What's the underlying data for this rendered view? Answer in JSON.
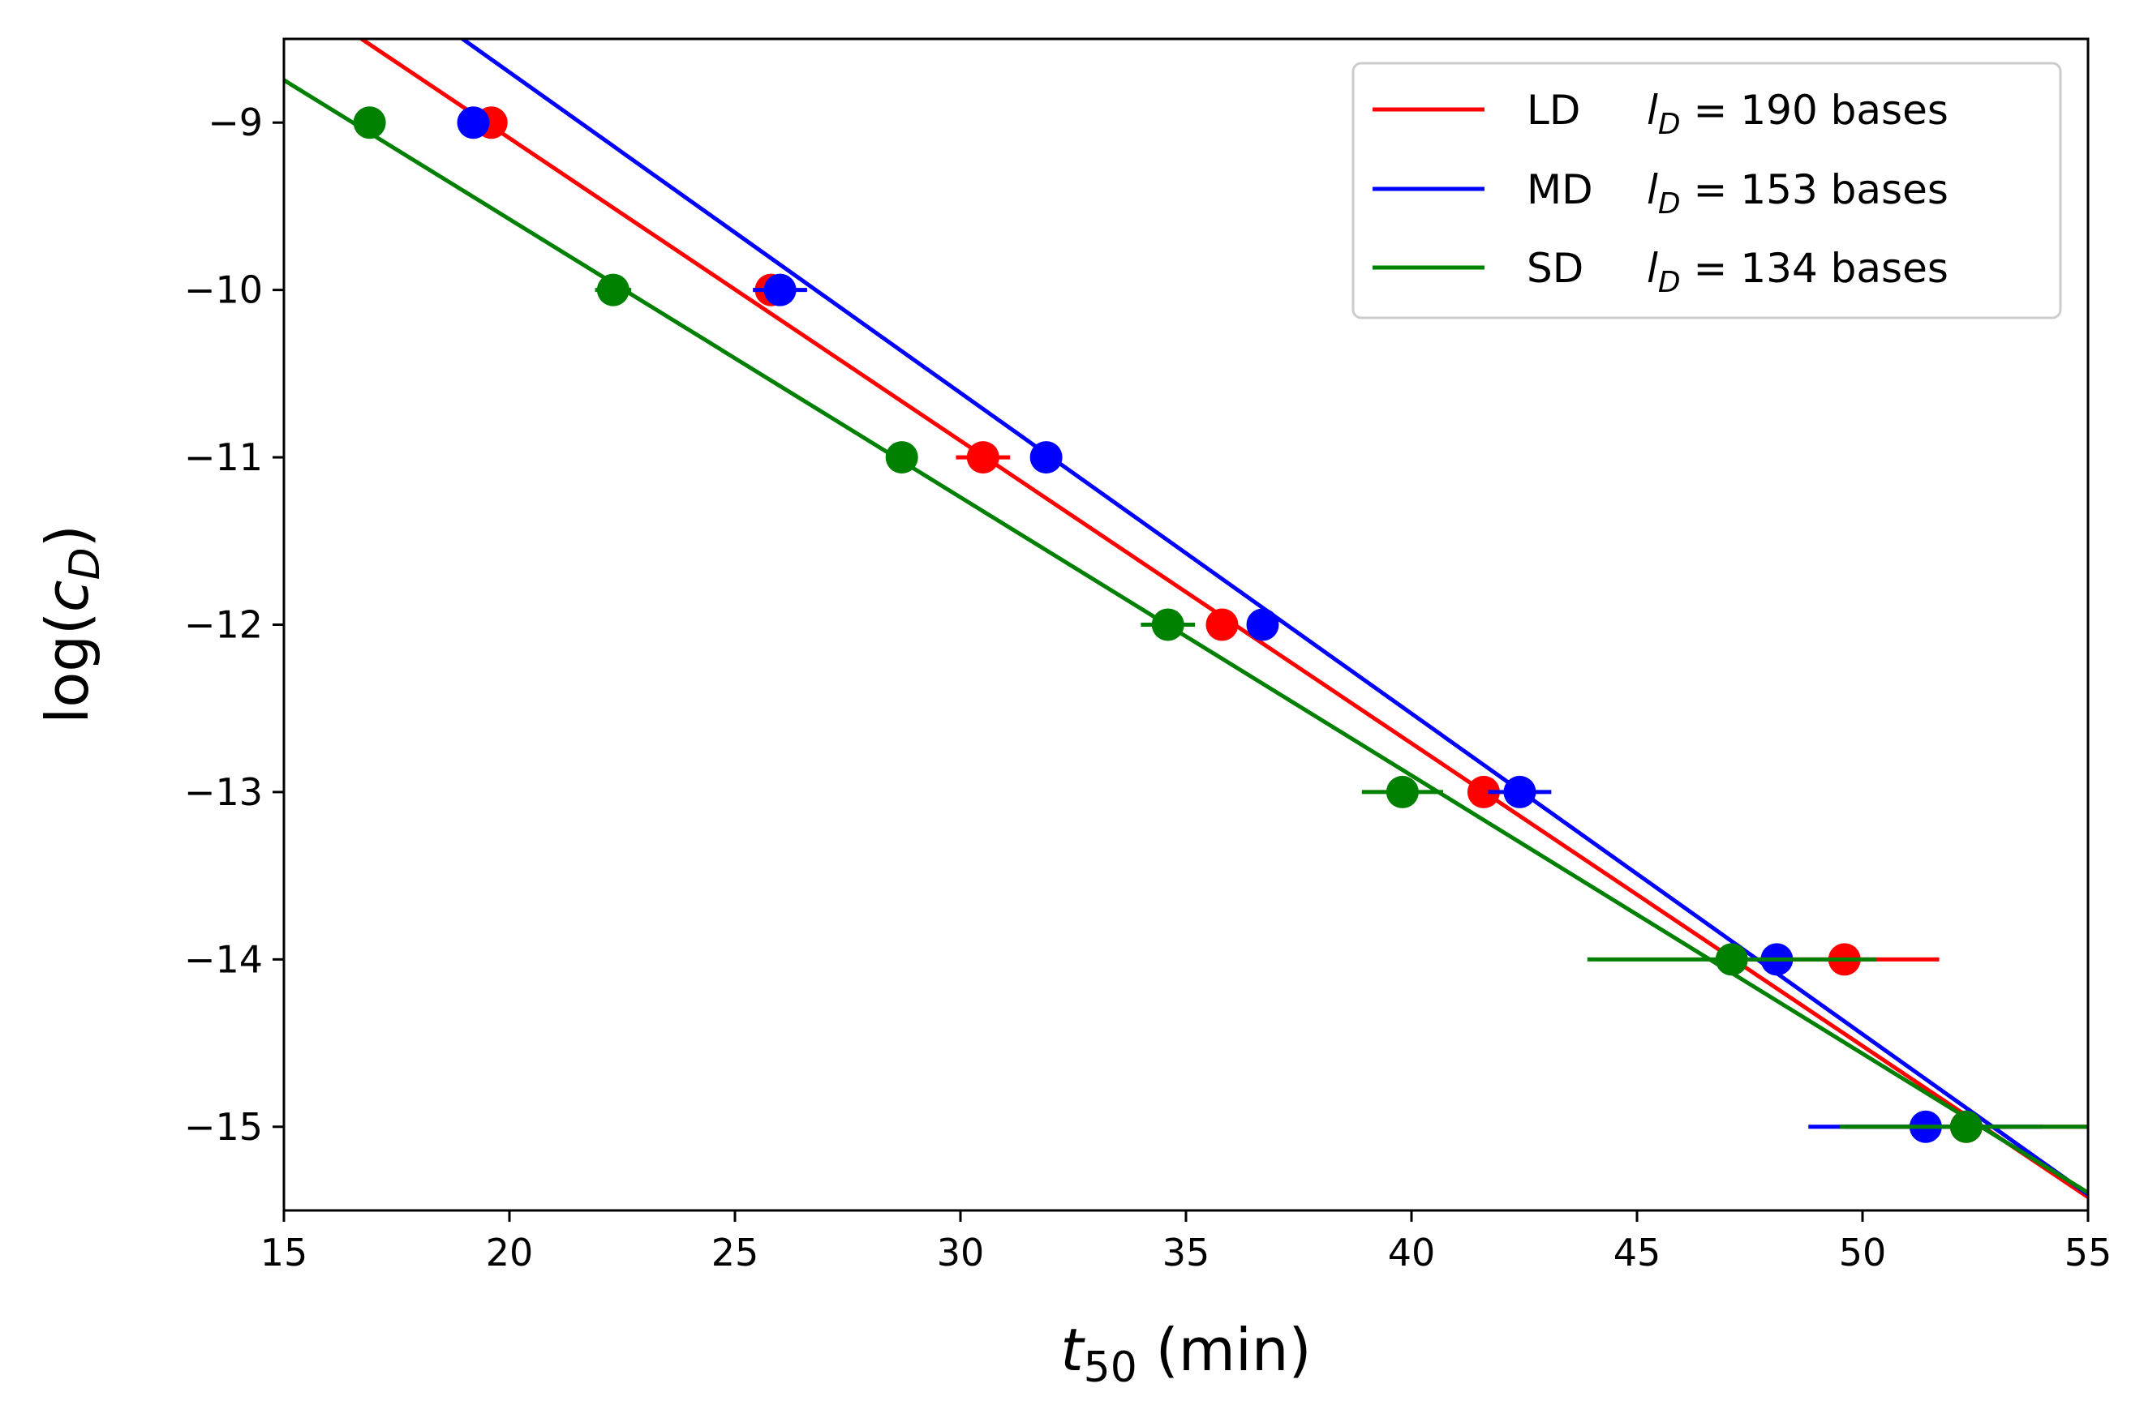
{
  "chart_data": {
    "type": "scatter",
    "xlabel": {
      "base": "t",
      "sub": "50",
      "unit": " (min)"
    },
    "ylabel": {
      "prefix": "log(",
      "var": "c",
      "sub": "D",
      "suffix": ")"
    },
    "xlim": [
      15,
      55
    ],
    "ylim": [
      -15.5,
      -8.5
    ],
    "xticks": [
      15,
      20,
      25,
      30,
      35,
      40,
      45,
      50,
      55
    ],
    "yticks": [
      -9,
      -10,
      -11,
      -12,
      -13,
      -14,
      -15
    ],
    "legend_position": "top-right",
    "series": [
      {
        "name": "LD",
        "legend_length": "190 bases",
        "color": "#ff0000",
        "fit_line": {
          "slope": -0.1808,
          "intercept": -5.477
        },
        "points": [
          {
            "x": 19.6,
            "y": -9,
            "xerr": 0.3
          },
          {
            "x": 25.8,
            "y": -10,
            "xerr": 0.4
          },
          {
            "x": 30.5,
            "y": -11,
            "xerr": 0.6
          },
          {
            "x": 35.8,
            "y": -12,
            "xerr": 0.3
          },
          {
            "x": 41.6,
            "y": -13,
            "xerr": 0.3
          },
          {
            "x": 49.6,
            "y": -14,
            "xerr": 2.1
          },
          {
            "x": 52.3,
            "y": -15,
            "xerr": 2.7
          }
        ]
      },
      {
        "name": "MD",
        "legend_length": "153 bases",
        "color": "#0000ff",
        "fit_line": {
          "slope": -0.1916,
          "intercept": -4.867
        },
        "points": [
          {
            "x": 19.2,
            "y": -9,
            "xerr": 0.3
          },
          {
            "x": 26.0,
            "y": -10,
            "xerr": 0.6
          },
          {
            "x": 31.9,
            "y": -11,
            "xerr": 0.3
          },
          {
            "x": 36.7,
            "y": -12,
            "xerr": 0.3
          },
          {
            "x": 42.4,
            "y": -13,
            "xerr": 0.7
          },
          {
            "x": 48.1,
            "y": -14,
            "xerr": 0.3
          },
          {
            "x": 51.4,
            "y": -15,
            "xerr": 2.6
          }
        ]
      },
      {
        "name": "SD",
        "legend_length": "134 bases",
        "color": "#008000",
        "fit_line": {
          "slope": -0.1662,
          "intercept": -6.253
        },
        "points": [
          {
            "x": 16.9,
            "y": -9,
            "xerr": 0.3
          },
          {
            "x": 22.3,
            "y": -10,
            "xerr": 0.4
          },
          {
            "x": 28.7,
            "y": -11,
            "xerr": 0.3
          },
          {
            "x": 34.6,
            "y": -12,
            "xerr": 0.6
          },
          {
            "x": 39.8,
            "y": -13,
            "xerr": 0.9
          },
          {
            "x": 47.1,
            "y": -14,
            "xerr": 3.2
          },
          {
            "x": 52.3,
            "y": -15,
            "xerr": 2.8
          }
        ]
      }
    ]
  }
}
